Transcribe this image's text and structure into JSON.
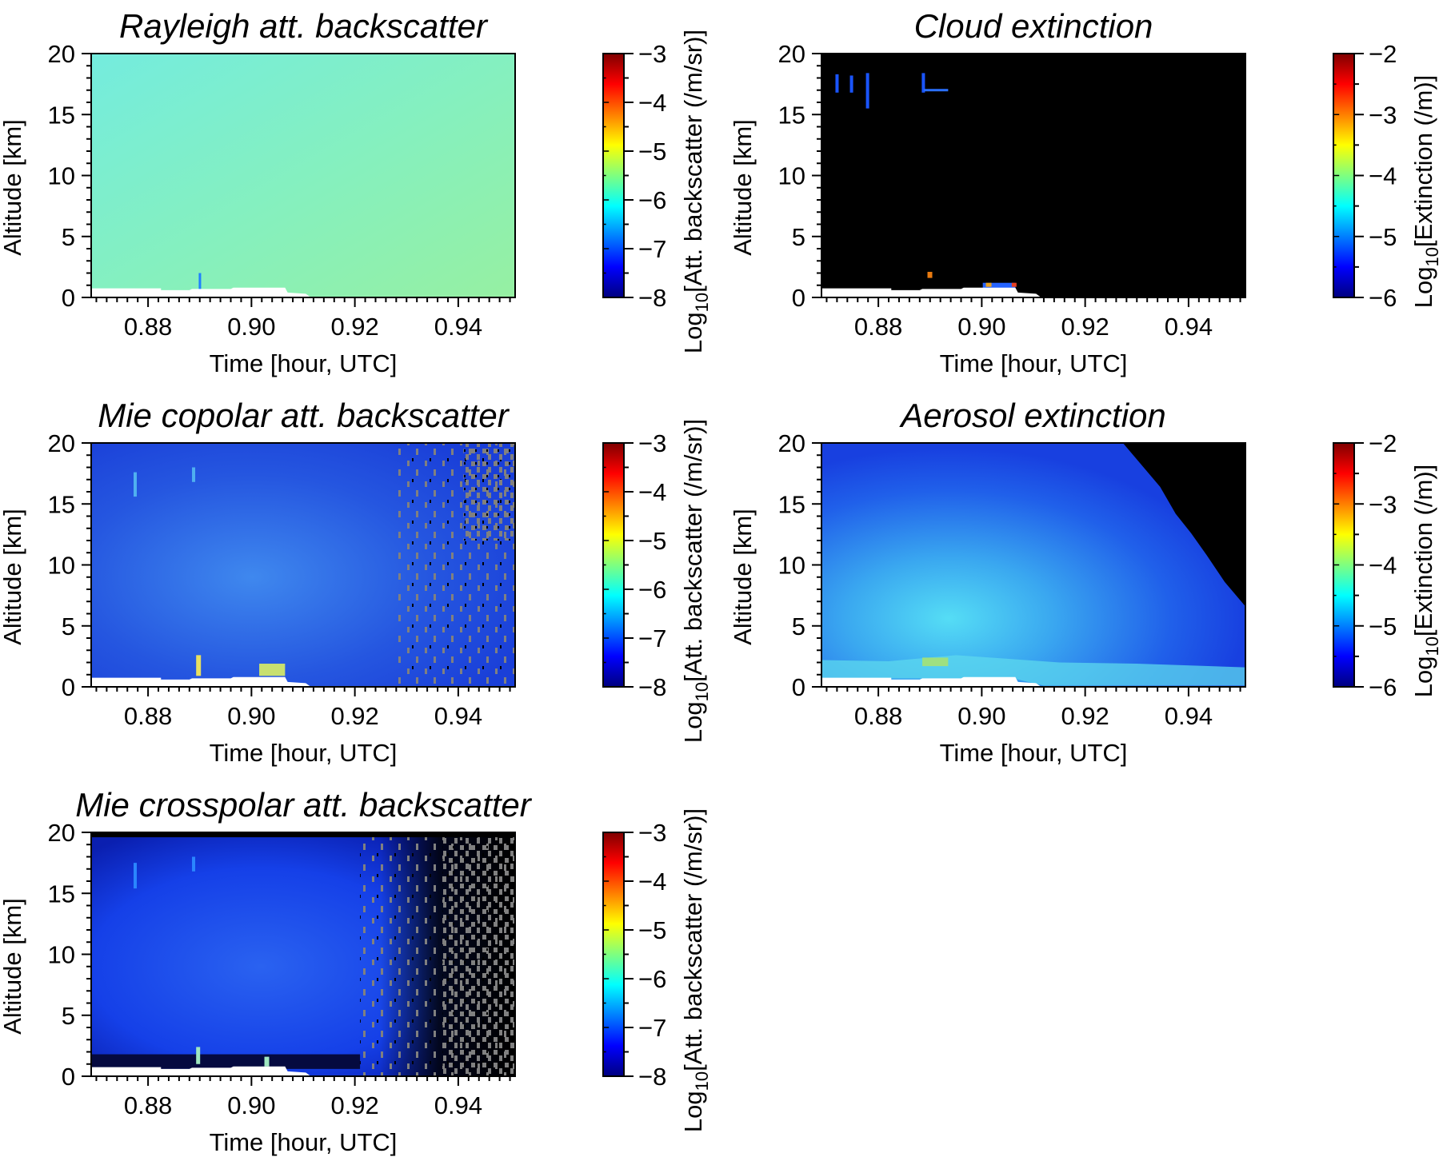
{
  "chart_data": [
    {
      "type": "heatmap",
      "title": "Rayleigh att. backscatter",
      "xlabel": "Time [hour, UTC]",
      "ylabel": "Altitude [km]",
      "xlim": [
        0.869,
        0.951
      ],
      "ylim": [
        0,
        20
      ],
      "xticks": [
        "0.88",
        "0.90",
        "0.92",
        "0.94"
      ],
      "yticks": [
        "0",
        "5",
        "10",
        "15",
        "20"
      ],
      "colorbar": {
        "label_pre": "Log",
        "label_sub": "10",
        "label_post": "[Att. backscatter (/m/sr)]",
        "range": [
          -8,
          -3
        ],
        "ticks": [
          "-3",
          "-4",
          "-5",
          "-6",
          "-7",
          "-8"
        ]
      },
      "description_values": {
        "background_log10": -5.8,
        "surface_km": 0.7
      }
    },
    {
      "type": "heatmap",
      "title": "Cloud extinction",
      "xlabel": "Time [hour, UTC]",
      "ylabel": "Altitude [km]",
      "xlim": [
        0.869,
        0.951
      ],
      "ylim": [
        0,
        20
      ],
      "xticks": [
        "0.88",
        "0.90",
        "0.92",
        "0.94"
      ],
      "yticks": [
        "0",
        "5",
        "10",
        "15",
        "20"
      ],
      "colorbar": {
        "label_pre": "Log",
        "label_sub": "10",
        "label_post": "[Extinction (/m)]",
        "range": [
          -6,
          -2
        ],
        "ticks": [
          "-2",
          "-3",
          "-4",
          "-5",
          "-6"
        ]
      },
      "description_values": {
        "background": "no cloud (black)",
        "cirrus_km": [
          16,
          18.5
        ],
        "low_cloud_km": [
          0.8,
          2.1
        ]
      }
    },
    {
      "type": "heatmap",
      "title": "Mie copolar att. backscatter",
      "xlabel": "Time [hour, UTC]",
      "ylabel": "Altitude [km]",
      "xlim": [
        0.869,
        0.951
      ],
      "ylim": [
        0,
        20
      ],
      "xticks": [
        "0.88",
        "0.90",
        "0.92",
        "0.94"
      ],
      "yticks": [
        "0",
        "5",
        "10",
        "15",
        "20"
      ],
      "colorbar": {
        "label_pre": "Log",
        "label_sub": "10",
        "label_post": "[Att. backscatter (/m/sr)]",
        "range": [
          -8,
          -3
        ],
        "ticks": [
          "-3",
          "-4",
          "-5",
          "-6",
          "-7",
          "-8"
        ]
      },
      "description_values": {
        "background_log10": -7.2
      }
    },
    {
      "type": "heatmap",
      "title": "Aerosol extinction",
      "xlabel": "Time [hour, UTC]",
      "ylabel": "Altitude [km]",
      "xlim": [
        0.869,
        0.951
      ],
      "ylim": [
        0,
        20
      ],
      "xticks": [
        "0.88",
        "0.90",
        "0.92",
        "0.94"
      ],
      "yticks": [
        "0",
        "5",
        "10",
        "15",
        "20"
      ],
      "colorbar": {
        "label_pre": "Log",
        "label_sub": "10",
        "label_post": "[Extinction (/m)]",
        "range": [
          -6,
          -2
        ],
        "ticks": [
          "-2",
          "-3",
          "-4",
          "-5",
          "-6"
        ]
      },
      "description_values": {
        "peak_log10": -4.6,
        "boundary_layer_km": 2.0
      }
    },
    {
      "type": "heatmap",
      "title": "Mie crosspolar att. backscatter",
      "xlabel": "Time [hour, UTC]",
      "ylabel": "Altitude [km]",
      "xlim": [
        0.869,
        0.951
      ],
      "ylim": [
        0,
        20
      ],
      "xticks": [
        "0.88",
        "0.90",
        "0.92",
        "0.94"
      ],
      "yticks": [
        "0",
        "5",
        "10",
        "15",
        "20"
      ],
      "colorbar": {
        "label_pre": "Log",
        "label_sub": "10",
        "label_post": "[Att. backscatter (/m/sr)]",
        "range": [
          -8,
          -3
        ],
        "ticks": [
          "-3",
          "-4",
          "-5",
          "-6",
          "-7",
          "-8"
        ]
      },
      "description_values": {
        "background_log10": -7.3
      }
    }
  ],
  "colors": {
    "no_data": "#808080",
    "below_range": "#000000",
    "surface": "#ffffff",
    "colormap": [
      "#00007f",
      "#0000ff",
      "#007fff",
      "#00ffff",
      "#7fff7f",
      "#ffff00",
      "#ff7f00",
      "#ff0000",
      "#7f0000"
    ]
  }
}
